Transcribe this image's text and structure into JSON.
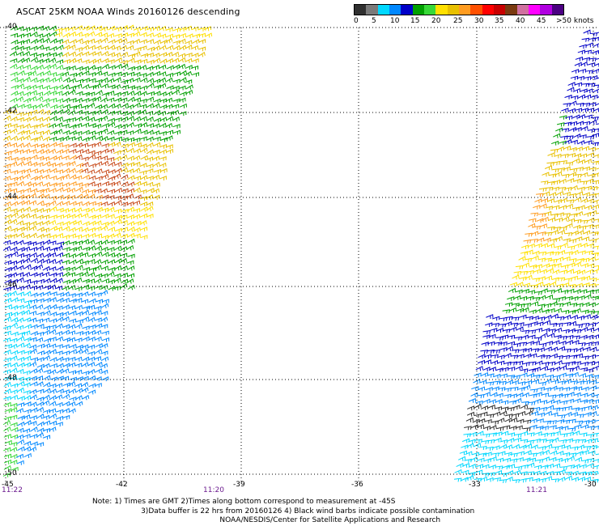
{
  "title": "ASCAT 25KM NOAA Winds 20160126 descending",
  "legend": {
    "colors": [
      "#303030",
      "#7a7a7a",
      "#00d8ff",
      "#0088ff",
      "#0000c8",
      "#00a000",
      "#38d838",
      "#ffe000",
      "#e8c000",
      "#ff9c20",
      "#ff5000",
      "#ff0000",
      "#c80000",
      "#7a3a10",
      "#d070a0",
      "#ff00ff",
      "#b000e0",
      "#4b0082"
    ],
    "labels": [
      "0",
      "5",
      "10",
      "15",
      "20",
      "25",
      "30",
      "35",
      "40",
      "45",
      ">50 knots"
    ]
  },
  "latitudes": [
    "-40",
    "-42",
    "-44",
    "-46",
    "-48",
    "-50"
  ],
  "longitudes": [
    "-45",
    "-42",
    "-39",
    "-36",
    "-33",
    "-30"
  ],
  "times": [
    "11:22",
    "11:20",
    "11:21"
  ],
  "note_lines": [
    "Note: 1) Times are GMT 2)Times along bottom correspond to measurement at -45S",
    "3)Data buffer is 22 hrs from 20160126 4) Black wind barbs indicate possible contamination",
    "NOAA/NESDIS/Center for Satellite Applications and Research"
  ],
  "swaths": [
    {
      "name": "west-swath",
      "color_bands": [
        "#ffe000",
        "#00a000",
        "#e8c000",
        "#ff9c20",
        "#0000c8",
        "#0088ff",
        "#00d8ff",
        "#38d838"
      ]
    },
    {
      "name": "east-swath",
      "color_bands": [
        "#00a000",
        "#38d838",
        "#e8c000",
        "#ff9c20",
        "#ffe000",
        "#0000c8",
        "#0088ff",
        "#00d8ff",
        "#303030"
      ]
    }
  ]
}
